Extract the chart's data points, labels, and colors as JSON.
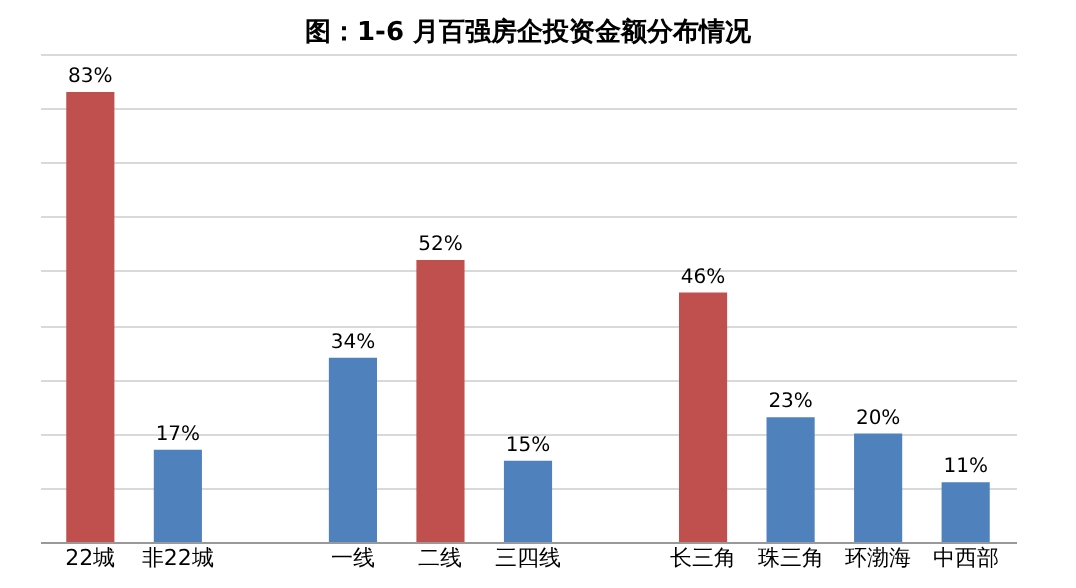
{
  "chart_data": {
    "type": "bar",
    "title": "图：1-6 月百强房企投资金额分布情况",
    "categories": [
      "22城",
      "非22城",
      null,
      "一线",
      "二线",
      "三四线",
      null,
      "长三角",
      "珠三角",
      "环渤海",
      "中西部"
    ],
    "values": [
      83,
      17,
      null,
      34,
      52,
      15,
      null,
      46,
      23,
      20,
      11
    ],
    "value_labels": [
      "83%",
      "17%",
      null,
      "34%",
      "52%",
      "15%",
      null,
      "46%",
      "23%",
      "20%",
      "11%"
    ],
    "colors": [
      "#c0504d",
      "#4f81bd",
      null,
      "#4f81bd",
      "#c0504d",
      "#4f81bd",
      null,
      "#c0504d",
      "#4f81bd",
      "#4f81bd",
      "#4f81bd"
    ],
    "grid": "y",
    "tick_labels": "x"
  }
}
